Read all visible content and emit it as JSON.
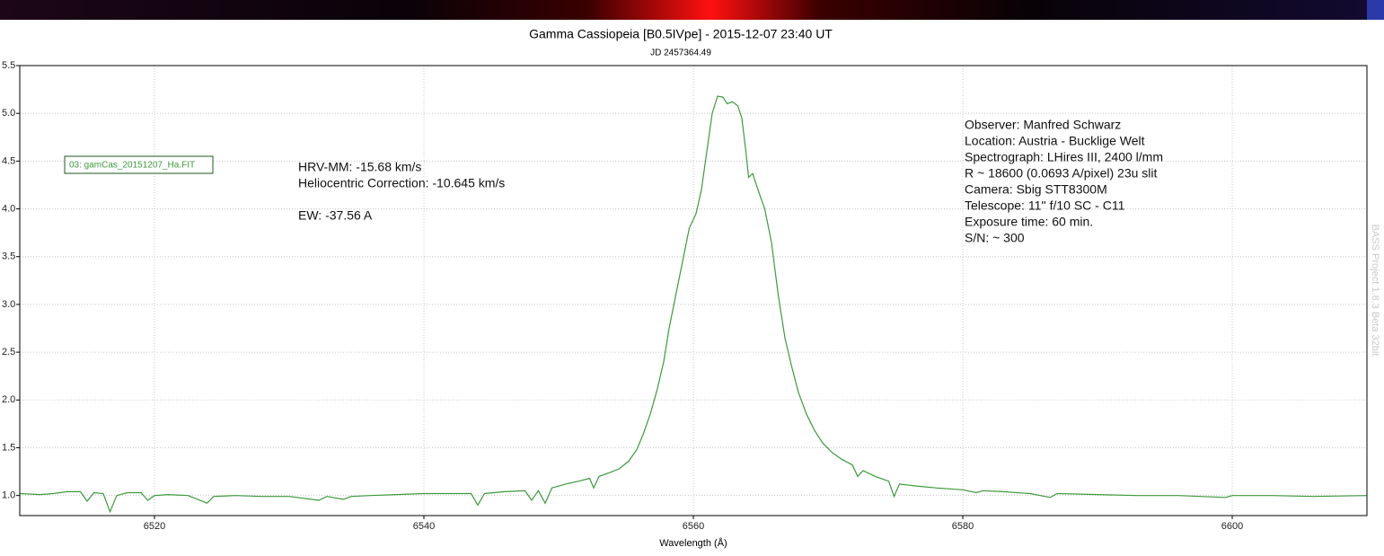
{
  "chart_data": {
    "type": "line",
    "title": "Gamma Cassiopeia [B0.5IVpe] - 2015-12-07 23:40 UT",
    "subtitle": "JD 2457364.49",
    "x_label": "Wavelength (Å)",
    "watermark": "BASS Project 1.8.3 Beta 32bit",
    "annotations": {
      "left": [
        "HRV-MM: -15.68 km/s",
        "Heliocentric Correction: -10.645 km/s",
        "EW: -37.56 A"
      ],
      "right": [
        "Observer: Manfred Schwarz",
        "Location: Austria - Bucklige Welt",
        "Spectrograph: LHires III, 2400 l/mm",
        "R ~ 18600 (0.0693 A/pixel) 23u slit",
        "Camera: Sbig STT8300M",
        "Telescope: 11'' f/10 SC - C11",
        "Exposure time: 60 min.",
        "S/N:  ~ 300"
      ]
    },
    "grid": true,
    "xlim": [
      6510,
      6610
    ],
    "ylim": [
      0.79,
      5.5
    ],
    "xticks": [
      6520,
      6540,
      6560,
      6580,
      6600
    ],
    "yticks": [
      {
        "value": 1,
        "label": "1.0"
      },
      1.5,
      {
        "value": 2,
        "label": "2.0"
      },
      2.5,
      {
        "value": 3,
        "label": "3.0"
      },
      3.5,
      {
        "value": 4,
        "label": "4.0"
      },
      4.5,
      {
        "value": 5,
        "label": "5.0"
      },
      5.5
    ],
    "x": [
      6510.0,
      6511.5,
      6512.5,
      6513.5,
      6514.5,
      6515.0,
      6515.5,
      6516.2,
      6516.7,
      6517.2,
      6518.0,
      6519.0,
      6519.5,
      6520.0,
      6521.0,
      6522.5,
      6523.9,
      6524.4,
      6526.0,
      6528.0,
      6530.0,
      6532.2,
      6532.8,
      6534.0,
      6534.6,
      6536.0,
      6538.0,
      6540.0,
      6542.0,
      6543.5,
      6544.0,
      6544.5,
      6546.0,
      6547.5,
      6548.0,
      6548.5,
      6549.0,
      6549.5,
      6550.5,
      6551.5,
      6552.3,
      6552.6,
      6553.0,
      6553.8,
      6554.5,
      6555.2,
      6555.8,
      6556.3,
      6556.8,
      6557.3,
      6557.8,
      6558.2,
      6558.7,
      6559.2,
      6559.7,
      6560.2,
      6560.6,
      6561.0,
      6561.4,
      6561.8,
      6562.2,
      6562.5,
      6562.9,
      6563.3,
      6563.6,
      6563.9,
      6564.1,
      6564.4,
      6564.8,
      6565.3,
      6565.8,
      6566.3,
      6566.8,
      6567.3,
      6567.8,
      6568.4,
      6569.0,
      6569.6,
      6570.3,
      6571.0,
      6571.8,
      6572.2,
      6572.6,
      6573.5,
      6574.5,
      6574.9,
      6575.3,
      6576.5,
      6578.0,
      6580.0,
      6581.0,
      6581.5,
      6583.0,
      6585.0,
      6586.5,
      6587.0,
      6590.0,
      6593.0,
      6596.0,
      6599.5,
      6600.0,
      6603.0,
      6606.0,
      6610.0
    ],
    "series": [
      {
        "name": "03: gamCas_20151207_Ha.FIT",
        "color": "#3c9a3c",
        "values": [
          1.02,
          1.01,
          1.02,
          1.04,
          1.04,
          0.94,
          1.03,
          1.02,
          0.83,
          1.0,
          1.03,
          1.03,
          0.95,
          1.0,
          1.01,
          1.0,
          0.92,
          0.99,
          1.0,
          0.99,
          0.99,
          0.95,
          0.99,
          0.96,
          0.99,
          1.0,
          1.01,
          1.02,
          1.02,
          1.02,
          0.9,
          1.02,
          1.04,
          1.05,
          0.95,
          1.05,
          0.92,
          1.08,
          1.12,
          1.15,
          1.18,
          1.08,
          1.2,
          1.24,
          1.28,
          1.36,
          1.48,
          1.65,
          1.85,
          2.1,
          2.4,
          2.75,
          3.1,
          3.45,
          3.8,
          3.95,
          4.2,
          4.6,
          5.0,
          5.18,
          5.17,
          5.1,
          5.12,
          5.08,
          4.95,
          4.6,
          4.33,
          4.37,
          4.2,
          4.0,
          3.65,
          3.1,
          2.65,
          2.35,
          2.08,
          1.85,
          1.68,
          1.55,
          1.45,
          1.38,
          1.32,
          1.2,
          1.26,
          1.2,
          1.15,
          0.99,
          1.12,
          1.1,
          1.08,
          1.06,
          1.03,
          1.05,
          1.04,
          1.02,
          0.98,
          1.02,
          1.01,
          1.0,
          1.0,
          0.98,
          1.0,
          1.0,
          0.99,
          1.0
        ]
      }
    ]
  }
}
